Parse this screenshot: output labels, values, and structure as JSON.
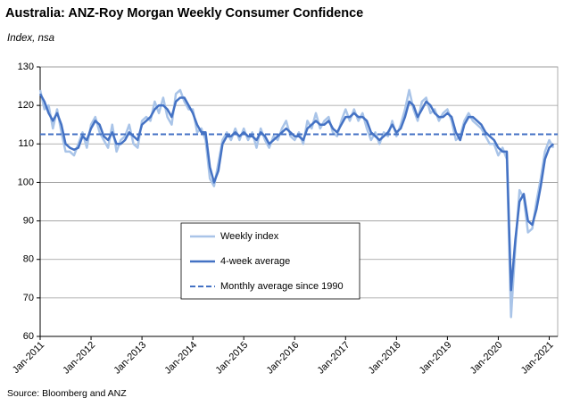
{
  "chart_data": {
    "type": "line",
    "title": "Australia: ANZ-Roy Morgan Weekly Consumer Confidence",
    "subtitle": "Index, nsa",
    "source": "Source: Bloomberg and ANZ",
    "x": [
      "2011-01",
      "2011-02",
      "2011-03",
      "2011-04",
      "2011-05",
      "2011-06",
      "2011-07",
      "2011-08",
      "2011-09",
      "2011-10",
      "2011-11",
      "2011-12",
      "2012-01",
      "2012-02",
      "2012-03",
      "2012-04",
      "2012-05",
      "2012-06",
      "2012-07",
      "2012-08",
      "2012-09",
      "2012-10",
      "2012-11",
      "2012-12",
      "2013-01",
      "2013-02",
      "2013-03",
      "2013-04",
      "2013-05",
      "2013-06",
      "2013-07",
      "2013-08",
      "2013-09",
      "2013-10",
      "2013-11",
      "2013-12",
      "2014-01",
      "2014-02",
      "2014-03",
      "2014-04",
      "2014-05",
      "2014-06",
      "2014-07",
      "2014-08",
      "2014-09",
      "2014-10",
      "2014-11",
      "2014-12",
      "2015-01",
      "2015-02",
      "2015-03",
      "2015-04",
      "2015-05",
      "2015-06",
      "2015-07",
      "2015-08",
      "2015-09",
      "2015-10",
      "2015-11",
      "2015-12",
      "2016-01",
      "2016-02",
      "2016-03",
      "2016-04",
      "2016-05",
      "2016-06",
      "2016-07",
      "2016-08",
      "2016-09",
      "2016-10",
      "2016-11",
      "2016-12",
      "2017-01",
      "2017-02",
      "2017-03",
      "2017-04",
      "2017-05",
      "2017-06",
      "2017-07",
      "2017-08",
      "2017-09",
      "2017-10",
      "2017-11",
      "2017-12",
      "2018-01",
      "2018-02",
      "2018-03",
      "2018-04",
      "2018-05",
      "2018-06",
      "2018-07",
      "2018-08",
      "2018-09",
      "2018-10",
      "2018-11",
      "2018-12",
      "2019-01",
      "2019-02",
      "2019-03",
      "2019-04",
      "2019-05",
      "2019-06",
      "2019-07",
      "2019-08",
      "2019-09",
      "2019-10",
      "2019-11",
      "2019-12",
      "2020-01",
      "2020-02",
      "2020-03",
      "2020-04",
      "2020-05",
      "2020-06",
      "2020-07",
      "2020-08",
      "2020-09",
      "2020-10",
      "2020-11",
      "2020-12",
      "2021-01",
      "2021-02"
    ],
    "series": [
      {
        "name": "Weekly index",
        "color": "#a9c4e8",
        "width": 2.5,
        "values": [
          124,
          119,
          120,
          114,
          119,
          113,
          108,
          108,
          107,
          110,
          113,
          109,
          115,
          117,
          113,
          111,
          109,
          115,
          108,
          111,
          112,
          115,
          110,
          109,
          116,
          117,
          116,
          121,
          118,
          122,
          117,
          115,
          123,
          124,
          121,
          119,
          119,
          113,
          114,
          111,
          101,
          99,
          105,
          111,
          113,
          111,
          114,
          111,
          114,
          111,
          113,
          109,
          114,
          111,
          109,
          112,
          111,
          114,
          116,
          112,
          111,
          113,
          110,
          116,
          114,
          118,
          114,
          116,
          117,
          113,
          112,
          116,
          119,
          116,
          119,
          116,
          118,
          114,
          111,
          113,
          110,
          113,
          112,
          116,
          112,
          115,
          119,
          124,
          119,
          116,
          121,
          122,
          118,
          119,
          116,
          118,
          119,
          116,
          111,
          112,
          116,
          118,
          116,
          115,
          114,
          112,
          110,
          110,
          107,
          109,
          106,
          65,
          83,
          98,
          96,
          87,
          88,
          95,
          101,
          108,
          111,
          109
        ]
      },
      {
        "name": "4-week average",
        "color": "#4472c4",
        "width": 2.5,
        "values": [
          123,
          121,
          118,
          116,
          118,
          115,
          110,
          109,
          108.5,
          109,
          112,
          111,
          114,
          116,
          115,
          112,
          111,
          113,
          110,
          110,
          111,
          113,
          112,
          111,
          115,
          116,
          117,
          119,
          120,
          120,
          119,
          117,
          121,
          122,
          122,
          120,
          118,
          115,
          113,
          113,
          104,
          100,
          103,
          110,
          112,
          112,
          113,
          112,
          113,
          112,
          112,
          111,
          113,
          112,
          110,
          111,
          112,
          113,
          114,
          113,
          112,
          112,
          111,
          114,
          115,
          116,
          115,
          115,
          116,
          114,
          113,
          115,
          117,
          117,
          118,
          117,
          117,
          116,
          113,
          112,
          111,
          112,
          113,
          115,
          113,
          114,
          117,
          121,
          120,
          117,
          119,
          121,
          120,
          118,
          117,
          117,
          118,
          117,
          113,
          111,
          115,
          117,
          117,
          116,
          115,
          113,
          112,
          111,
          109,
          108,
          108,
          72,
          85,
          95,
          97,
          90,
          89,
          93,
          99,
          106,
          109,
          110
        ]
      }
    ],
    "reference": {
      "name": "Monthly average since 1990",
      "value": 112.5,
      "color": "#4472c4"
    },
    "xlim": [
      "2011-01",
      "2021-03"
    ],
    "xticks": [
      {
        "value": "2011-01",
        "label": "Jan-2011"
      },
      {
        "value": "2012-01",
        "label": "Jan-2012"
      },
      {
        "value": "2013-01",
        "label": "Jan-2013"
      },
      {
        "value": "2014-01",
        "label": "Jan-2014"
      },
      {
        "value": "2015-01",
        "label": "Jan-2015"
      },
      {
        "value": "2016-01",
        "label": "Jan-2016"
      },
      {
        "value": "2017-01",
        "label": "Jan-2017"
      },
      {
        "value": "2018-01",
        "label": "Jan-2018"
      },
      {
        "value": "2019-01",
        "label": "Jan-2019"
      },
      {
        "value": "2020-01",
        "label": "Jan-2020"
      },
      {
        "value": "2021-01",
        "label": "Jan-2021"
      }
    ],
    "ylim": [
      60,
      130
    ],
    "yticks": [
      60,
      70,
      80,
      90,
      100,
      110,
      120,
      130
    ],
    "grid": true
  }
}
